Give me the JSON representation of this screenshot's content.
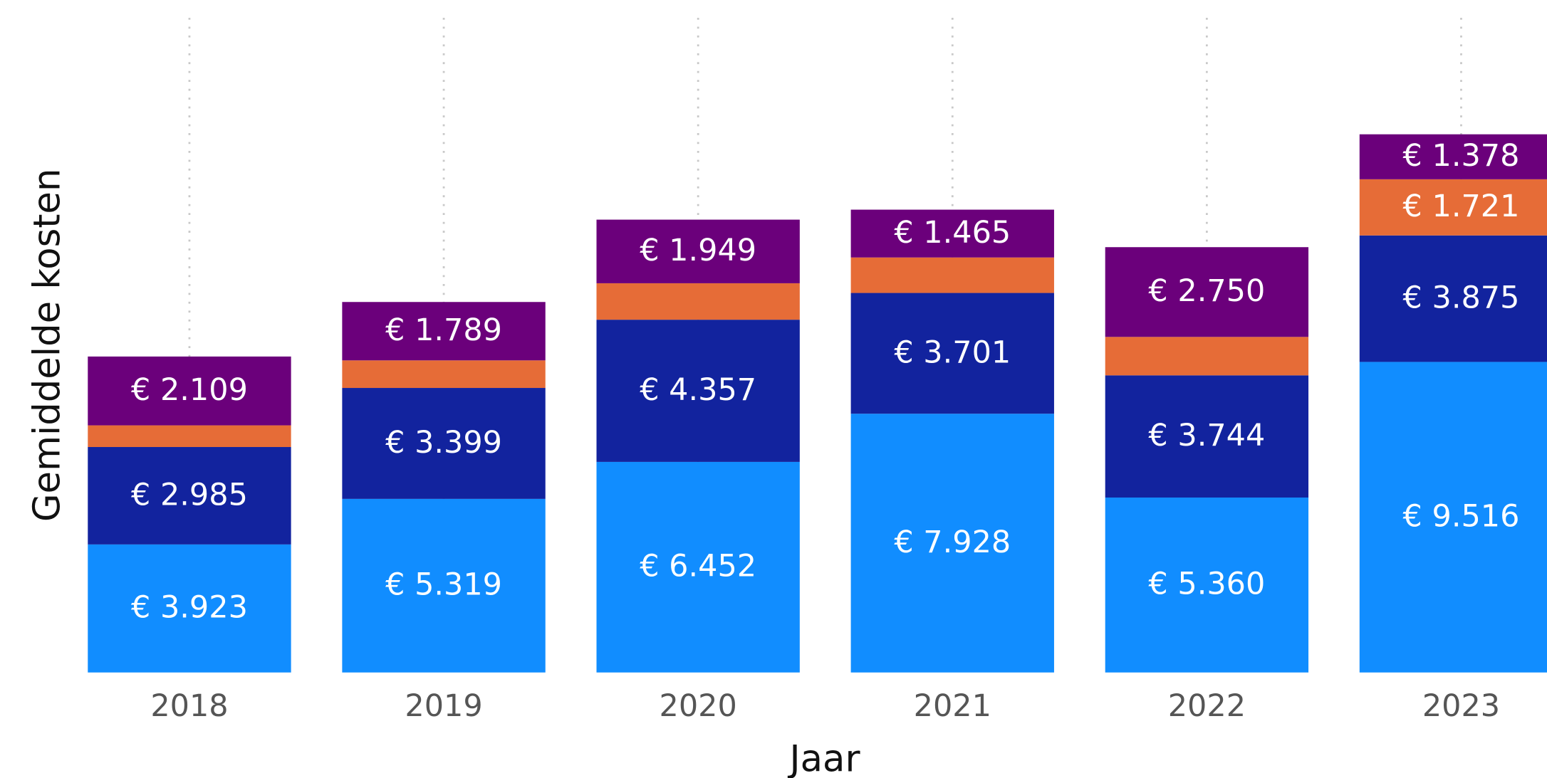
{
  "chart_data": {
    "type": "stacked_bar",
    "x_label": "Jaar",
    "y_label": "Gemiddelde kosten",
    "categories": [
      "2018",
      "2019",
      "2020",
      "2021",
      "2022",
      "2023"
    ],
    "ylim": [
      0,
      20000
    ],
    "grid": true,
    "series": [
      {
        "color": "#118dff",
        "values": [
          3923,
          5319,
          6452,
          7928,
          5360,
          9516
        ],
        "value_labels": [
          "€ 3.923",
          "€ 5.319",
          "€ 6.452",
          "€ 7.928",
          "€ 5.360",
          "€ 9.516"
        ]
      },
      {
        "color": "#12239e",
        "values": [
          2985,
          3399,
          4357,
          3701,
          3744,
          3875
        ],
        "value_labels": [
          "€ 2.985",
          "€ 3.399",
          "€ 4.357",
          "€ 3.701",
          "€ 3.744",
          "€ 3.875"
        ]
      },
      {
        "color": "#e66c37",
        "values": [
          664,
          845,
          1117,
          1087,
          1178,
          1721
        ],
        "value_labels": [
          null,
          null,
          null,
          null,
          null,
          "€ 1.721"
        ]
      },
      {
        "color": "#6b007b",
        "values": [
          2109,
          1789,
          1949,
          1465,
          2750,
          1378
        ],
        "value_labels": [
          "€ 2.109",
          "€ 1.789",
          "€ 1.949",
          "€ 1.465",
          "€ 2.750",
          "€ 1.378"
        ]
      }
    ]
  }
}
